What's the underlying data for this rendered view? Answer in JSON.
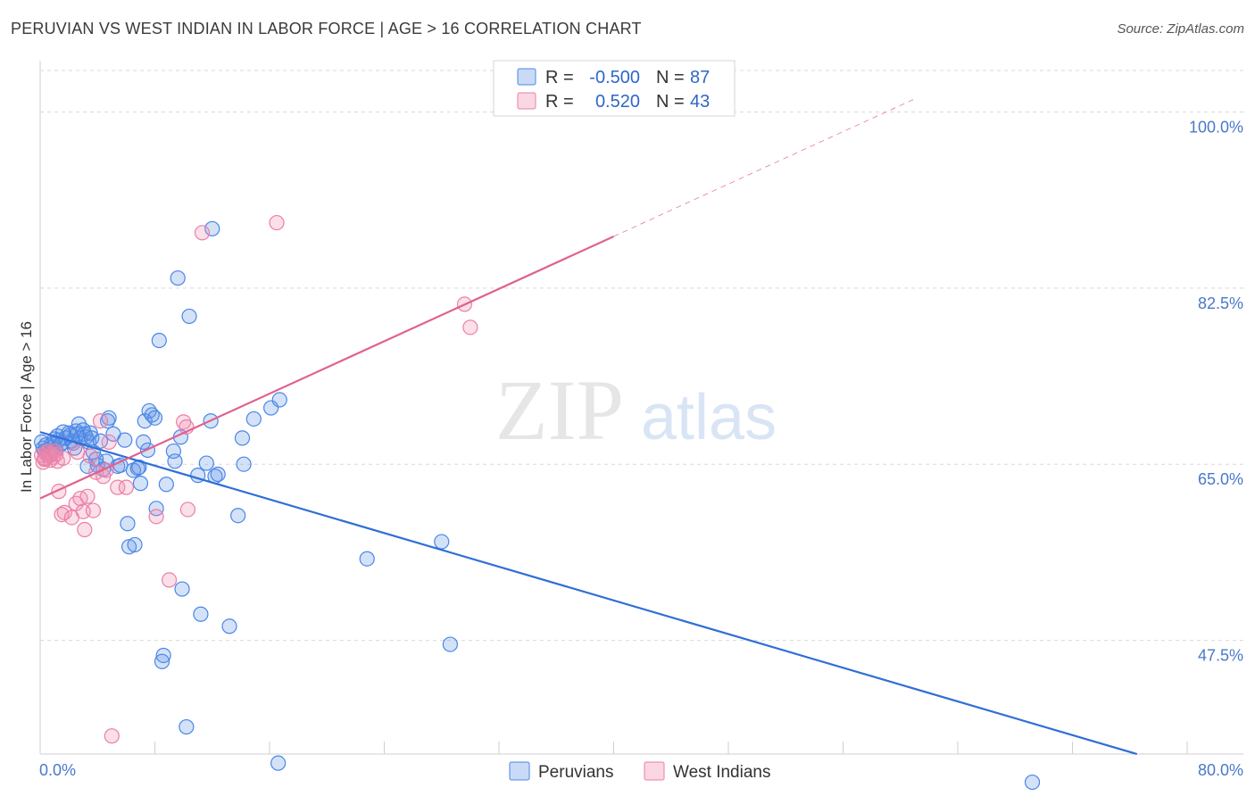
{
  "title": "PERUVIAN VS WEST INDIAN IN LABOR FORCE | AGE > 16 CORRELATION CHART",
  "source": "Source: ZipAtlas.com",
  "watermark": {
    "zip": "ZIP",
    "atlas": "atlas"
  },
  "colors": {
    "blue": "#4a86e8",
    "blue_fill": "rgba(100,150,230,0.28)",
    "blue_line": "#2f6fd6",
    "pink": "#e97fa6",
    "pink_fill": "rgba(240,140,175,0.28)",
    "pink_line": "#e0628f",
    "grid": "#d9d9d9",
    "axis_text": "#4a78c9"
  },
  "legend": {
    "r_label": "R =",
    "n_label": "N =",
    "rows": [
      {
        "series": "Peruvians",
        "r": "-0.500",
        "n": "87"
      },
      {
        "series": "West Indians",
        "r": "0.520",
        "n": "43"
      }
    ]
  },
  "bottom_legend": [
    "Peruvians",
    "West Indians"
  ],
  "chart_data": {
    "type": "scatter",
    "title": "PERUVIAN VS WEST INDIAN IN LABOR FORCE | AGE > 16 CORRELATION CHART",
    "xlabel": "",
    "ylabel": "In Labor Force | Age > 16",
    "xlim": [
      0,
      80
    ],
    "ylim": [
      36.2,
      104.3
    ],
    "x_tick_labels": [
      "0.0%",
      "80.0%"
    ],
    "y_ticks": [
      47.5,
      65.0,
      82.5,
      100.0
    ],
    "y_tick_labels": [
      "47.5%",
      "65.0%",
      "82.5%",
      "100.0%"
    ],
    "series": [
      {
        "name": "Peruvians",
        "color": "#4a86e8",
        "r": -0.5,
        "n": 87,
        "trend": {
          "x0": 0,
          "y0": 68.2,
          "x1": 76.5,
          "y1": 36.2,
          "dashed_from": null
        },
        "points": [
          [
            0.1,
            67.2
          ],
          [
            0.2,
            66.6
          ],
          [
            0.3,
            66.3
          ],
          [
            0.4,
            66.9
          ],
          [
            0.5,
            66.4
          ],
          [
            0.6,
            66.0
          ],
          [
            0.8,
            67.0
          ],
          [
            0.9,
            66.7
          ],
          [
            1.0,
            67.5
          ],
          [
            1.1,
            66.4
          ],
          [
            1.2,
            67.8
          ],
          [
            1.3,
            67.4
          ],
          [
            1.4,
            66.9
          ],
          [
            1.5,
            67.1
          ],
          [
            1.6,
            68.2
          ],
          [
            1.8,
            67.6
          ],
          [
            2.0,
            68.1
          ],
          [
            2.1,
            67.9
          ],
          [
            2.2,
            67.3
          ],
          [
            2.3,
            67.1
          ],
          [
            2.4,
            66.6
          ],
          [
            2.5,
            68.3
          ],
          [
            2.6,
            68.0
          ],
          [
            2.7,
            69.0
          ],
          [
            2.8,
            67.6
          ],
          [
            3.0,
            68.4
          ],
          [
            3.1,
            68.0
          ],
          [
            3.2,
            67.7
          ],
          [
            3.3,
            64.8
          ],
          [
            3.4,
            67.2
          ],
          [
            3.5,
            68.1
          ],
          [
            3.6,
            67.6
          ],
          [
            3.7,
            66.2
          ],
          [
            3.9,
            65.5
          ],
          [
            4.0,
            64.9
          ],
          [
            4.2,
            67.3
          ],
          [
            4.4,
            64.5
          ],
          [
            4.6,
            65.3
          ],
          [
            4.7,
            69.3
          ],
          [
            4.8,
            69.6
          ],
          [
            5.1,
            68.0
          ],
          [
            5.4,
            64.8
          ],
          [
            5.6,
            64.9
          ],
          [
            5.9,
            67.4
          ],
          [
            6.1,
            59.1
          ],
          [
            6.2,
            56.8
          ],
          [
            6.5,
            64.4
          ],
          [
            6.6,
            57.0
          ],
          [
            6.8,
            64.6
          ],
          [
            6.9,
            64.7
          ],
          [
            7.0,
            63.1
          ],
          [
            7.2,
            67.2
          ],
          [
            7.3,
            69.3
          ],
          [
            7.5,
            66.4
          ],
          [
            7.6,
            70.3
          ],
          [
            7.8,
            69.9
          ],
          [
            8.0,
            69.6
          ],
          [
            8.1,
            60.6
          ],
          [
            8.3,
            77.3
          ],
          [
            8.5,
            45.4
          ],
          [
            8.6,
            46.0
          ],
          [
            8.8,
            63.0
          ],
          [
            9.3,
            66.3
          ],
          [
            9.4,
            65.3
          ],
          [
            9.6,
            83.5
          ],
          [
            9.8,
            67.7
          ],
          [
            9.9,
            52.6
          ],
          [
            10.2,
            38.9
          ],
          [
            10.4,
            79.7
          ],
          [
            11.0,
            63.9
          ],
          [
            11.2,
            50.1
          ],
          [
            11.6,
            65.1
          ],
          [
            11.9,
            69.3
          ],
          [
            12.0,
            88.4
          ],
          [
            12.2,
            63.8
          ],
          [
            12.4,
            64.0
          ],
          [
            13.2,
            48.9
          ],
          [
            13.8,
            59.9
          ],
          [
            14.1,
            67.6
          ],
          [
            14.2,
            65.0
          ],
          [
            14.9,
            69.5
          ],
          [
            16.1,
            70.6
          ],
          [
            16.7,
            71.4
          ],
          [
            16.6,
            35.3
          ],
          [
            22.8,
            55.6
          ],
          [
            28.0,
            57.3
          ],
          [
            28.6,
            47.1
          ],
          [
            69.2,
            33.4
          ]
        ]
      },
      {
        "name": "West Indians",
        "color": "#e97fa6",
        "r": 0.52,
        "n": 43,
        "trend": {
          "x0": 0,
          "y0": 61.6,
          "x1": 61.0,
          "y1": 101.3,
          "dashed_from": 40.0
        },
        "points": [
          [
            0.1,
            65.9
          ],
          [
            0.2,
            65.2
          ],
          [
            0.3,
            65.6
          ],
          [
            0.4,
            66.1
          ],
          [
            0.5,
            66.3
          ],
          [
            0.6,
            65.8
          ],
          [
            0.7,
            65.4
          ],
          [
            0.8,
            66.0
          ],
          [
            0.9,
            65.7
          ],
          [
            1.0,
            66.3
          ],
          [
            1.1,
            66.0
          ],
          [
            1.2,
            65.3
          ],
          [
            1.3,
            62.3
          ],
          [
            1.5,
            60.0
          ],
          [
            1.6,
            65.6
          ],
          [
            1.7,
            60.2
          ],
          [
            2.2,
            59.7
          ],
          [
            2.5,
            61.1
          ],
          [
            2.6,
            66.2
          ],
          [
            2.8,
            61.6
          ],
          [
            3.0,
            60.3
          ],
          [
            3.1,
            58.5
          ],
          [
            3.3,
            61.8
          ],
          [
            3.5,
            65.8
          ],
          [
            3.7,
            60.4
          ],
          [
            3.9,
            64.2
          ],
          [
            4.2,
            69.3
          ],
          [
            4.4,
            63.8
          ],
          [
            4.6,
            64.4
          ],
          [
            4.8,
            67.2
          ],
          [
            5.0,
            38.0
          ],
          [
            5.4,
            62.7
          ],
          [
            6.0,
            62.7
          ],
          [
            8.1,
            59.8
          ],
          [
            9.0,
            53.5
          ],
          [
            10.0,
            69.2
          ],
          [
            10.2,
            68.7
          ],
          [
            10.3,
            60.5
          ],
          [
            11.3,
            88.0
          ],
          [
            16.5,
            89.0
          ],
          [
            29.6,
            80.9
          ],
          [
            30.0,
            78.6
          ],
          [
            0.3,
            65.5
          ]
        ]
      }
    ]
  }
}
